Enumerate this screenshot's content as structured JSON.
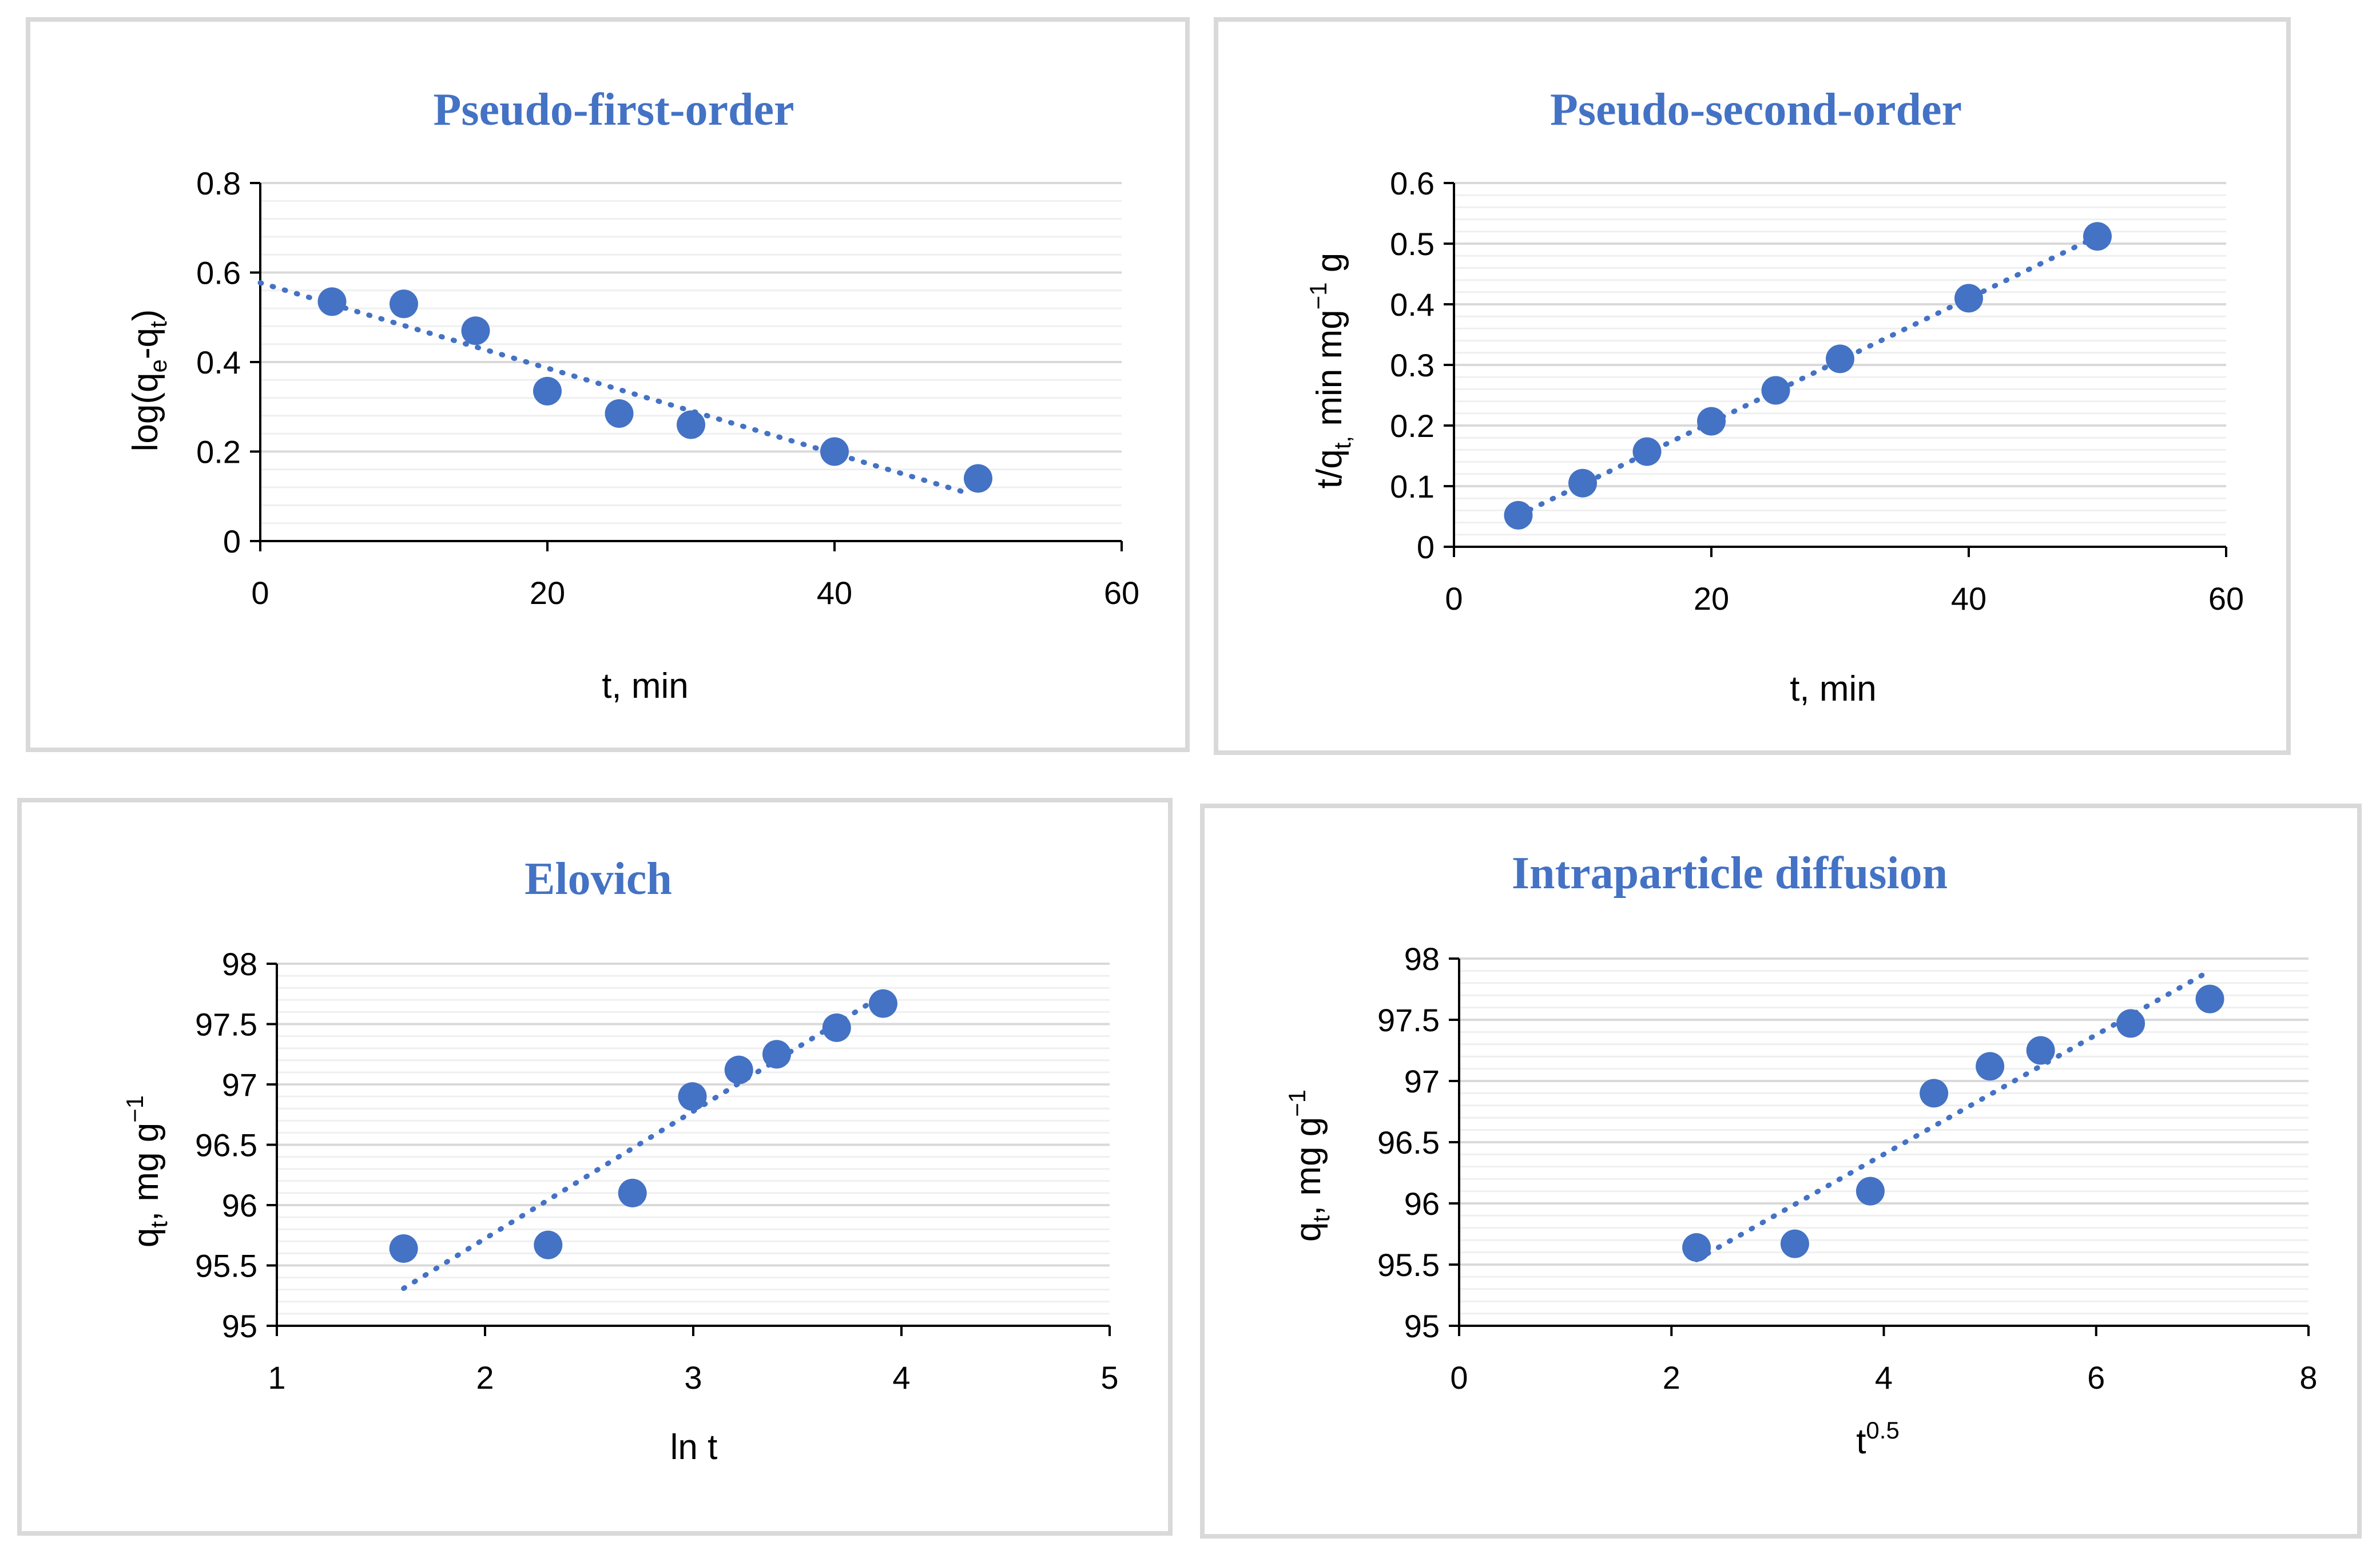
{
  "colors": {
    "accent": "#4472c4",
    "grid": "#d9d9d9",
    "border": "#d9d9d9"
  },
  "chart_data": [
    {
      "type": "scatter",
      "title": "Pseudo-first-order",
      "xlabel": "t, min",
      "ylabel": {
        "base": "log(q",
        "sub1": "e",
        "mid": "-q",
        "sub2": "t",
        "end": ")"
      },
      "xlim": [
        0,
        60
      ],
      "ylim": [
        0,
        0.8
      ],
      "xticks": [
        "0",
        "20",
        "40",
        "60"
      ],
      "yticks": [
        "0",
        "0.2",
        "0.4",
        "0.6",
        "0.8"
      ],
      "x": [
        5,
        10,
        15,
        20,
        25,
        30,
        40,
        50
      ],
      "y": [
        0.535,
        0.53,
        0.47,
        0.335,
        0.285,
        0.26,
        0.2,
        0.14
      ],
      "trendline": {
        "x": [
          0,
          49.5
        ],
        "y": [
          0.577,
          0.105
        ]
      }
    },
    {
      "type": "scatter",
      "title": "Pseudo-second-order",
      "xlabel": "t, min",
      "ylabel": {
        "base": "t/q",
        "sub1": "t,",
        "mid": " min mg",
        "sup": "−1",
        "end": " g"
      },
      "xlim": [
        0,
        60
      ],
      "ylim": [
        0,
        0.6
      ],
      "xticks": [
        "0",
        "20",
        "40",
        "60"
      ],
      "yticks": [
        "0",
        "0.1",
        "0.2",
        "0.3",
        "0.4",
        "0.5",
        "0.6"
      ],
      "x": [
        5,
        10,
        15,
        20,
        25,
        30,
        40,
        50
      ],
      "y": [
        0.052,
        0.105,
        0.157,
        0.207,
        0.258,
        0.31,
        0.41,
        0.512
      ],
      "trendline": {
        "x": [
          5,
          50
        ],
        "y": [
          0.052,
          0.512
        ]
      }
    },
    {
      "type": "scatter",
      "title": "Elovich",
      "xlabel": "ln t",
      "ylabel": {
        "base": "q",
        "sub1": "t",
        "mid": ", mg g",
        "sup": "−1",
        "end": ""
      },
      "xlim": [
        1,
        5
      ],
      "ylim": [
        95,
        98
      ],
      "xticks": [
        "1",
        "2",
        "3",
        "4",
        "5"
      ],
      "yticks": [
        "95",
        "95.5",
        "96",
        "96.5",
        "97",
        "97.5",
        "98"
      ],
      "x": [
        1.609,
        2.303,
        2.708,
        2.996,
        3.219,
        3.401,
        3.689,
        3.912
      ],
      "y": [
        95.64,
        95.67,
        96.1,
        96.9,
        97.12,
        97.25,
        97.47,
        97.67
      ],
      "trendline": {
        "x": [
          1.609,
          3.912
        ],
        "y": [
          95.31,
          97.74
        ]
      }
    },
    {
      "type": "scatter",
      "title": "Intraparticle diffusion",
      "xlabel": {
        "base": "t",
        "sup": "0.5"
      },
      "ylabel": {
        "base": "q",
        "sub1": "t",
        "mid": ", mg g",
        "sup": "−1",
        "end": ""
      },
      "xlim": [
        0,
        8
      ],
      "ylim": [
        95,
        98
      ],
      "xticks": [
        "0",
        "2",
        "4",
        "6",
        "8"
      ],
      "yticks": [
        "95",
        "95.5",
        "96",
        "96.5",
        "97",
        "97.5",
        "98"
      ],
      "x": [
        2.236,
        3.162,
        3.873,
        4.472,
        5.0,
        5.477,
        6.325,
        7.071
      ],
      "y": [
        95.64,
        95.67,
        96.1,
        96.9,
        97.12,
        97.25,
        97.47,
        97.67
      ],
      "trendline": {
        "x": [
          2.236,
          7.071
        ],
        "y": [
          95.54,
          97.9
        ]
      }
    }
  ]
}
